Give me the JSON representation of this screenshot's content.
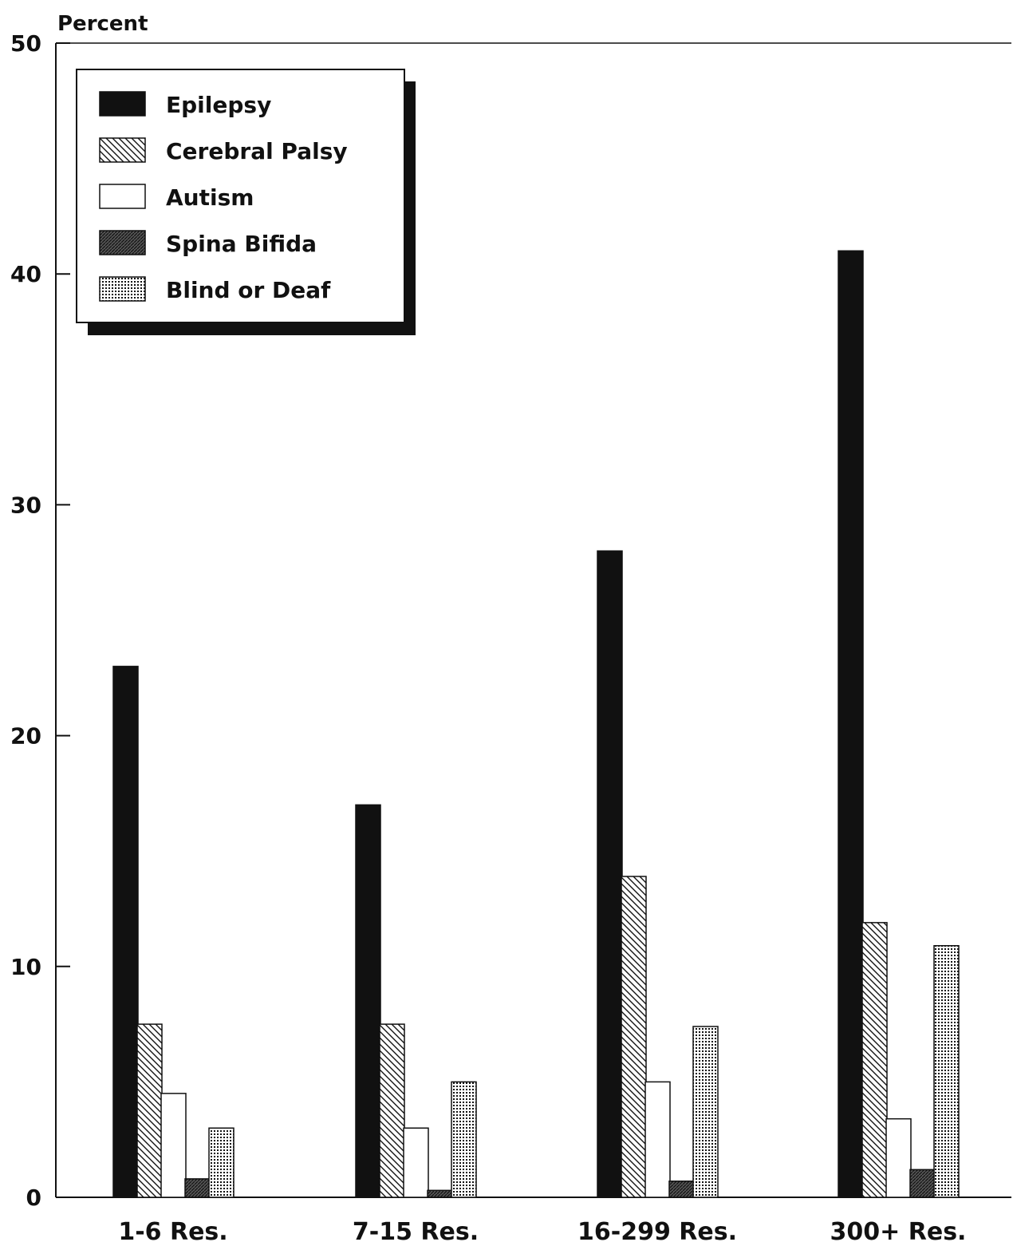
{
  "chart_data": {
    "type": "bar",
    "ylabel": "Percent",
    "xlabel": "",
    "ylim": [
      0,
      50
    ],
    "yticks": [
      0,
      10,
      20,
      30,
      40,
      50
    ],
    "categories": [
      "1-6 Res.",
      "7-15 Res.",
      "16-299 Res.",
      "300+ Res."
    ],
    "series": [
      {
        "name": "Epilepsy",
        "pattern": "solid",
        "values": [
          23.0,
          17.0,
          28.0,
          41.0
        ]
      },
      {
        "name": "Cerebral Palsy",
        "pattern": "diagonal",
        "values": [
          7.5,
          7.5,
          13.9,
          11.9
        ]
      },
      {
        "name": "Autism",
        "pattern": "empty",
        "values": [
          4.5,
          3.0,
          5.0,
          3.4
        ]
      },
      {
        "name": "Spina Bifida",
        "pattern": "dense-diagonal",
        "values": [
          0.8,
          0.3,
          0.7,
          1.2
        ]
      },
      {
        "name": "Blind or Deaf",
        "pattern": "dots",
        "values": [
          3.0,
          5.0,
          7.4,
          10.9
        ]
      }
    ],
    "legend_position": "top-left",
    "grid": false
  },
  "colors": {
    "ink": "#111111",
    "background": "#ffffff"
  }
}
